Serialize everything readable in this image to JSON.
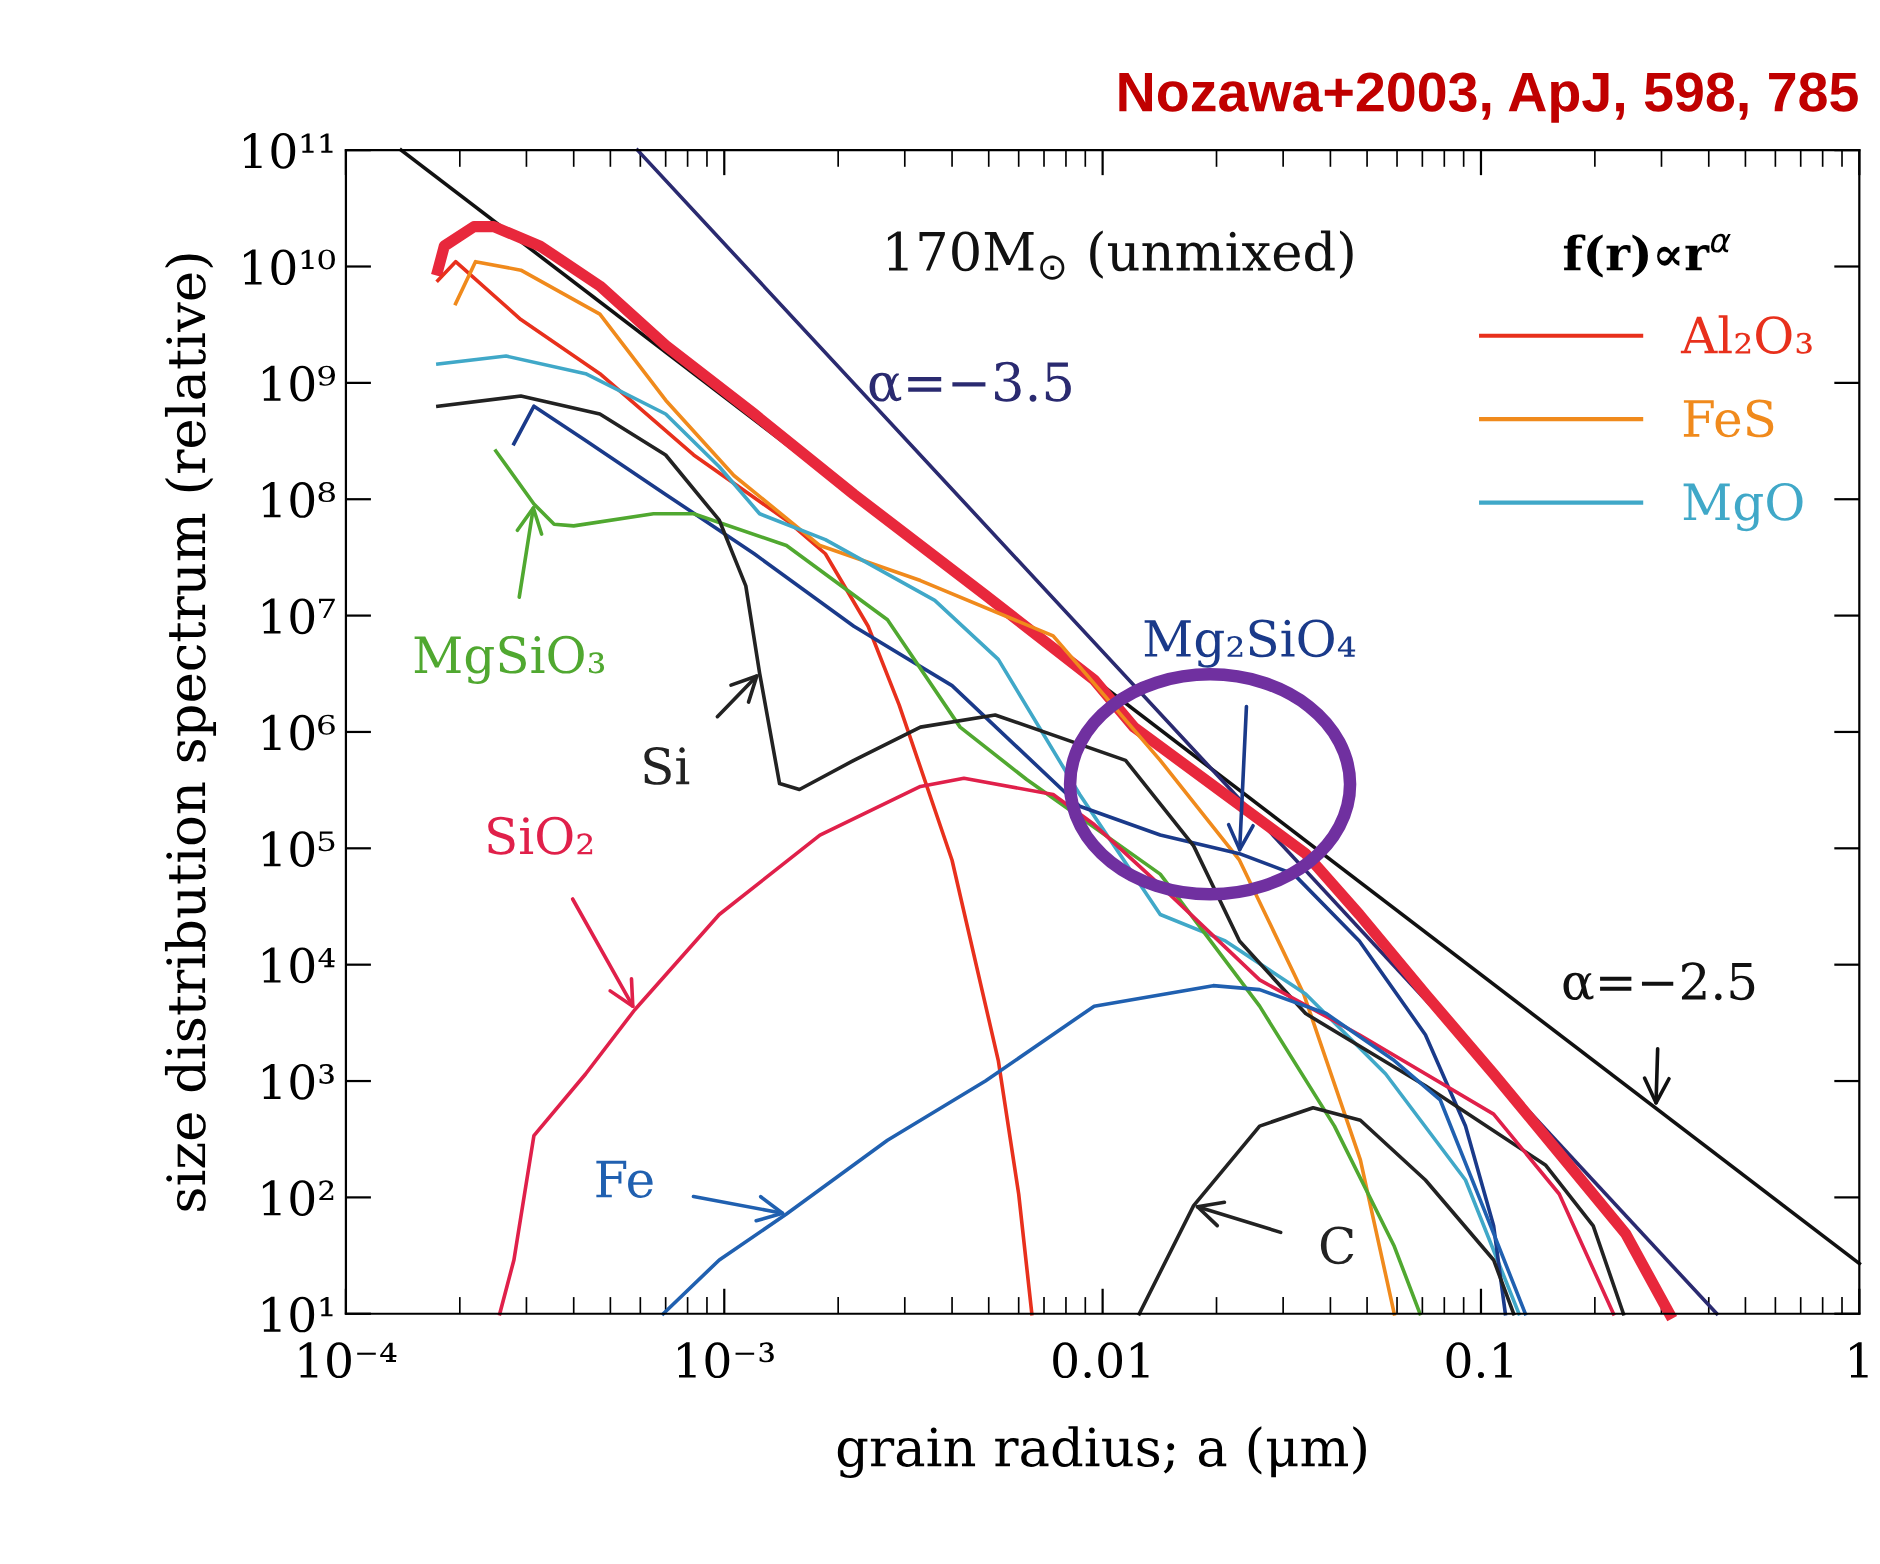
{
  "chart_data": {
    "type": "line",
    "title": "Nozawa+2003, ApJ, 598, 785",
    "xlabel": "grain radius; a (μm)",
    "ylabel": "size distribution spectrum (relative)",
    "legend_title": "f(r)∝r$^{α}$",
    "log": "xy",
    "grid": false,
    "legend": "right",
    "xlim": [
      0.0001,
      1
    ],
    "ylim": [
      10,
      100000000000
    ],
    "xticks": [
      {
        "value": 0.0001,
        "label": "10⁻⁴"
      },
      {
        "value": 0.001,
        "label": "10⁻³"
      },
      0.01,
      0.1,
      1
    ],
    "yticks": [
      {
        "value": 10,
        "label": "10¹"
      },
      {
        "value": 100,
        "label": "10²"
      },
      {
        "value": 1000,
        "label": "10³"
      },
      {
        "value": 10000,
        "label": "10⁴"
      },
      {
        "value": 100000,
        "label": "10⁵"
      },
      {
        "value": 1000000,
        "label": "10⁶"
      },
      {
        "value": 10000000,
        "label": "10⁷"
      },
      {
        "value": 100000000,
        "label": "10⁸"
      },
      {
        "value": 1000000000,
        "label": "10⁹"
      },
      {
        "value": 10000000000,
        "label": "10¹⁰"
      },
      {
        "value": 100000000000,
        "label": "10¹¹"
      }
    ],
    "series": [
      {
        "color": "#111111",
        "x": [
          0.00014,
          1
        ],
        "values": [
          100000000000,
          27
        ]
      },
      {
        "color": "#2a2a70",
        "x": [
          0.00059,
          0.42
        ],
        "values": [
          100000000000,
          10
        ]
      },
      {
        "color": "#e8283c",
        "x": [
          0.000175,
          0.000182,
          0.000218,
          0.000246,
          0.000326,
          0.000469,
          0.0007,
          0.0012,
          0.0022,
          0.0049,
          0.0095,
          0.0121,
          0.0211,
          0.0344,
          0.0477,
          0.0713,
          0.108,
          0.161,
          0.241,
          0.315
        ],
        "values": [
          9300000000,
          15000000000,
          22000000000,
          22000000000,
          15000000000,
          6800000000,
          2100000000,
          540000000,
          110000000,
          15000000,
          2800000,
          1100000,
          290000,
          90000,
          27000,
          5600,
          1150,
          240,
          49,
          10
        ]
      },
      {
        "name": "Al₂O₃",
        "color": "#e8301c",
        "x": [
          0.000175,
          0.000195,
          0.00029,
          0.000469,
          0.00083,
          0.00146,
          0.00185,
          0.0024,
          0.0029,
          0.004,
          0.0053,
          0.006,
          0.0065
        ],
        "values": [
          7600000000,
          11000000000,
          3500000000,
          1200000000,
          240000000,
          66000000,
          34000000,
          8100000,
          1700000,
          79000,
          1500,
          107,
          10
        ]
      },
      {
        "name": "FeS",
        "color": "#f08a1c",
        "x": [
          0.000195,
          0.00022,
          0.00029,
          0.000469,
          0.0007,
          0.00106,
          0.00179,
          0.0033,
          0.0074,
          0.0142,
          0.023,
          0.034,
          0.048,
          0.059
        ],
        "values": [
          4800000000,
          11000000000,
          9300000000,
          3900000000,
          710000000,
          160000000,
          40000000,
          20000000,
          6700000,
          570000,
          79000,
          5600,
          210,
          10
        ]
      },
      {
        "name": "MgO",
        "color": "#40a8c8",
        "x": [
          0.000175,
          0.000265,
          0.00043,
          0.0007,
          0.00097,
          0.00124,
          0.00185,
          0.0036,
          0.0053,
          0.0087,
          0.0142,
          0.0211,
          0.0344,
          0.056,
          0.091,
          0.126
        ],
        "values": [
          1450000000,
          1700000000,
          1200000000,
          540000000,
          190000000,
          75000000,
          45000000,
          13500000,
          4200000,
          290000,
          27000,
          16000,
          5600,
          1150,
          141,
          10
        ]
      },
      {
        "color": "#1a3a8a",
        "x": [
          0.000278,
          0.000314,
          0.00043,
          0.0007,
          0.0012,
          0.0022,
          0.004,
          0.0087,
          0.0142,
          0.023,
          0.032,
          0.0477,
          0.0713,
          0.091,
          0.108,
          0.116
        ],
        "values": [
          300000000,
          630000000,
          320000000,
          110000000,
          34000000,
          8100000,
          2500000,
          230000,
          130000,
          90000,
          60000,
          16000,
          2500,
          410,
          57,
          10
        ]
      },
      {
        "color": "#50a830",
        "x": [
          0.000249,
          0.000314,
          0.000355,
          0.0004,
          0.00065,
          0.00083,
          0.00146,
          0.0027,
          0.0042,
          0.0063,
          0.0142,
          0.026,
          0.041,
          0.059,
          0.069
        ],
        "values": [
          260000000,
          91000000,
          61000000,
          59000000,
          75000000,
          75000000,
          40000000,
          9200000,
          1100000,
          390000,
          60000,
          4400,
          410,
          38,
          10
        ]
      },
      {
        "color": "#222222",
        "x": [
          0.000175,
          0.00029,
          0.000469,
          0.0007,
          0.00097,
          0.00114,
          0.00124,
          0.0014,
          0.00158,
          0.0022,
          0.0033,
          0.0052,
          0.0115,
          0.0174,
          0.023,
          0.0344,
          0.0713,
          0.148,
          0.198,
          0.238
        ],
        "values": [
          630000000,
          770000000,
          540000000,
          240000000,
          66000000,
          18000000,
          3200000,
          360000,
          320000,
          570000,
          1100000,
          1400000,
          570000,
          105000,
          16000,
          3800,
          910,
          190,
          57,
          10
        ]
      },
      {
        "color": "#e0204a",
        "x": [
          0.000255,
          0.000278,
          0.000314,
          0.00043,
          0.00058,
          0.00097,
          0.00179,
          0.0033,
          0.0043,
          0.0074,
          0.0095,
          0.0142,
          0.026,
          0.0477,
          0.108,
          0.161,
          0.224
        ],
        "values": [
          10,
          29,
          340,
          1150,
          4100,
          27000,
          130000,
          340000,
          400000,
          290000,
          160000,
          48000,
          7400,
          2500,
          520,
          107,
          10
        ]
      },
      {
        "color": "#2060b0",
        "x": [
          0.00069,
          0.00097,
          0.00146,
          0.0027,
          0.0049,
          0.0095,
          0.0196,
          0.026,
          0.039,
          0.059,
          0.078,
          0.108,
          0.131
        ],
        "values": [
          10,
          29,
          72,
          310,
          1000,
          4400,
          6600,
          6100,
          3800,
          1500,
          690,
          49,
          10
        ]
      },
      {
        "color": "#222222",
        "x": [
          0.0125,
          0.0174,
          0.026,
          0.036,
          0.048,
          0.0713,
          0.108,
          0.122
        ],
        "values": [
          10,
          85,
          410,
          590,
          460,
          141,
          29,
          10
        ]
      }
    ],
    "annotations": [
      "170M$_{⊙}$ (unmixed)",
      {
        "text": "α=−3.5",
        "x": 0.00222,
        "y": 930000000
      },
      {
        "text": "MgSiO₃",
        "x": 0.000314,
        "y": 91000000
      },
      {
        "text": "Si",
        "x": 0.00124,
        "y": 3200000
      },
      {
        "text": "SiO₂",
        "x": 0.00058,
        "y": 4100
      },
      {
        "text": "Fe",
        "x": 0.00146,
        "y": 72
      },
      {
        "text": "C",
        "x": 0.0174,
        "y": 85
      },
      {
        "text": "Mg₂SiO₄",
        "x": 0.023,
        "y": 90000
      },
      {
        "text": "α=−2.5",
        "x": 0.29,
        "y": 600
      }
    ]
  }
}
